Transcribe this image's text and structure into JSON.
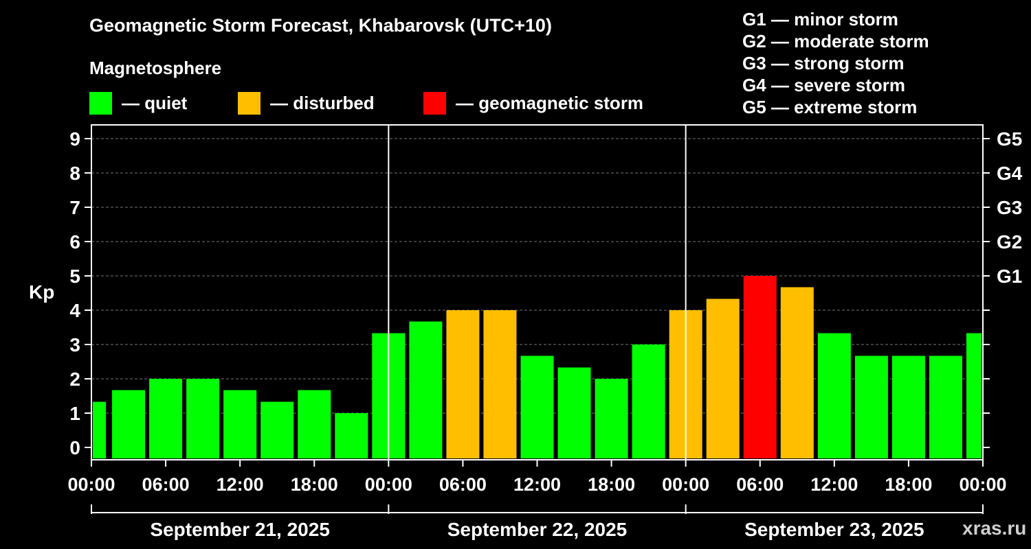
{
  "chart_data": {
    "type": "bar",
    "title": "Geomagnetic Storm Forecast, Khabarovsk (UTC+10)",
    "subtitle": "Magnetosphere",
    "ylabel": "Kp",
    "ylim": [
      0,
      9
    ],
    "yticks": [
      "0",
      "1",
      "2",
      "3",
      "4",
      "5",
      "6",
      "7",
      "8",
      "9"
    ],
    "right_ticks": [
      {
        "kp": 5,
        "label": "G1"
      },
      {
        "kp": 6,
        "label": "G2"
      },
      {
        "kp": 7,
        "label": "G3"
      },
      {
        "kp": 8,
        "label": "G4"
      },
      {
        "kp": 9,
        "label": "G5"
      }
    ],
    "xticks": [
      "00:00",
      "06:00",
      "12:00",
      "18:00",
      "00:00",
      "06:00",
      "12:00",
      "18:00",
      "00:00",
      "06:00",
      "12:00",
      "18:00",
      "00:00"
    ],
    "days": [
      "September 21, 2025",
      "September 22, 2025",
      "September 23, 2025"
    ],
    "values": [
      1.33,
      1.67,
      2.0,
      2.0,
      1.67,
      1.33,
      1.67,
      1.0,
      3.33,
      3.67,
      4.0,
      4.0,
      2.67,
      2.33,
      2.0,
      3.0,
      4.0,
      4.33,
      5.0,
      4.67,
      3.33,
      2.67,
      2.67,
      2.67,
      3.33
    ],
    "categories": [
      "quiet",
      "quiet",
      "quiet",
      "quiet",
      "quiet",
      "quiet",
      "quiet",
      "quiet",
      "quiet",
      "quiet",
      "disturbed",
      "disturbed",
      "quiet",
      "quiet",
      "quiet",
      "quiet",
      "disturbed",
      "disturbed",
      "storm",
      "disturbed",
      "quiet",
      "quiet",
      "quiet",
      "quiet",
      "quiet"
    ],
    "grid": true
  },
  "legend": {
    "quiet": {
      "label": "— quiet",
      "color": "#00ff00"
    },
    "disturbed": {
      "label": "— disturbed",
      "color": "#ffbf00"
    },
    "storm": {
      "label": "— geomagnetic storm",
      "color": "#ff0000"
    }
  },
  "storm_levels": [
    "G1 — minor storm",
    "G2 — moderate storm",
    "G3 — strong storm",
    "G4 — severe storm",
    "G5 — extreme storm"
  ],
  "watermark": "xras.ru"
}
